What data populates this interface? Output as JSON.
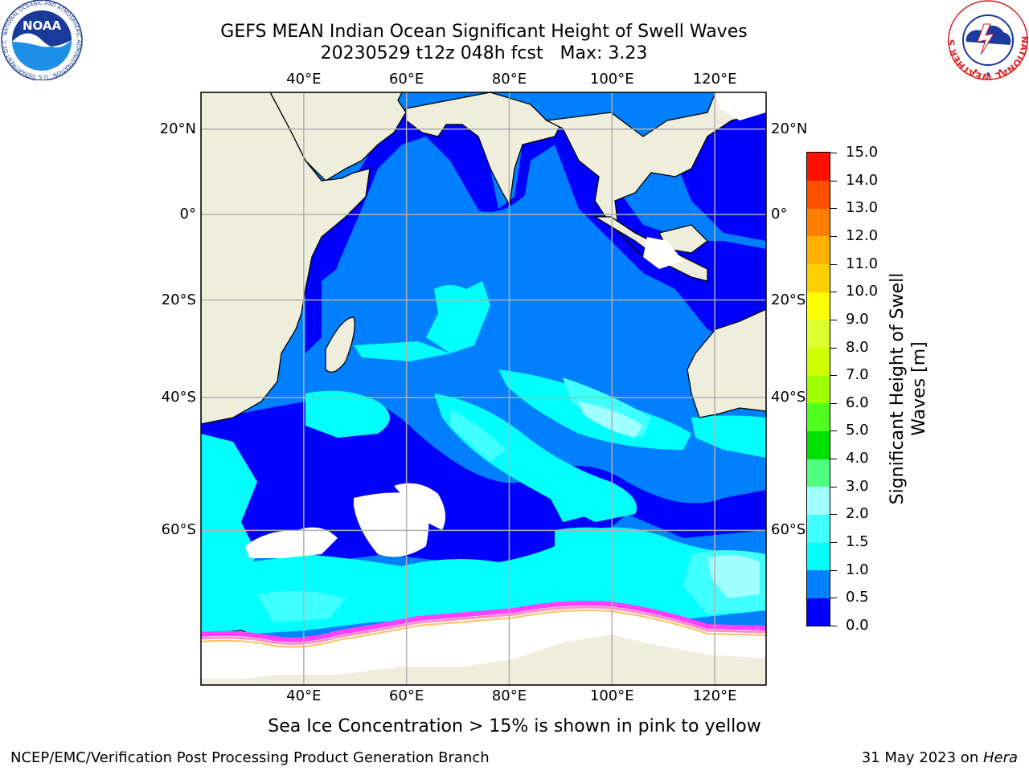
{
  "header": {
    "title_line1": "GEFS MEAN Indian Ocean Significant Height of Swell Waves",
    "title_line2": "20230529 t12z 048h fcst   Max: 3.23"
  },
  "logos": {
    "noaa_text": "NOAA",
    "noaa_ring_text": "NATIONAL OCEANIC AND ATMOSPHERIC ADMINISTRATION · U.S. DEPARTMENT OF COMMERCE",
    "nws_ring_text": "NATIONAL WEATHER SERVICE"
  },
  "map": {
    "lon_ticks": [
      "40°E",
      "60°E",
      "80°E",
      "100°E",
      "120°E"
    ],
    "lat_ticks": [
      "20°N",
      "0°",
      "20°S",
      "40°S",
      "60°S"
    ],
    "lon_values": [
      40,
      60,
      80,
      100,
      120
    ],
    "lat_values": [
      20,
      0,
      -20,
      -40,
      -60
    ],
    "extent": {
      "lon_min": 20,
      "lon_max": 130,
      "lat_min": -74,
      "lat_max": 28
    },
    "colors": {
      "land": "#efeddc",
      "ocean_base": "#0080ff",
      "band_0_05": "#0000ff",
      "band_05_10": "#0080ff",
      "band_10_15": "#00ffff",
      "band_15_20": "#40ffff",
      "band_20_30": "#a0ffff",
      "ice": "#ffffff",
      "ice_edge": [
        "#ff40ff",
        "#ff90c0",
        "#ffc060",
        "#ffff00"
      ],
      "grid": "#b0b0b0"
    }
  },
  "colorbar": {
    "label": "Significant Height of Swell Waves [m]",
    "label_line1": "Significant Height of Swell",
    "label_line2": "Waves [m]",
    "levels": [
      "0.0",
      "0.5",
      "1.0",
      "1.5",
      "2.0",
      "3.0",
      "4.0",
      "5.0",
      "6.0",
      "7.0",
      "8.0",
      "9.0",
      "10.0",
      "11.0",
      "12.0",
      "13.0",
      "14.0",
      "15.0"
    ],
    "colors": [
      "#0000ff",
      "#0080ff",
      "#00ffff",
      "#40ffff",
      "#a0ffff",
      "#50ff80",
      "#00e000",
      "#50ff20",
      "#a0ff00",
      "#d0ff00",
      "#e0ff30",
      "#ffff00",
      "#ffd000",
      "#ffb000",
      "#ff8000",
      "#ff5000",
      "#ff1000"
    ]
  },
  "footer": {
    "subtitle": "Sea Ice Concentration > 15% is shown in pink to yellow",
    "left": "NCEP/EMC/Verification Post Processing Product Generation Branch",
    "right_date": "31 May 2023 on ",
    "right_machine": "Hera"
  }
}
